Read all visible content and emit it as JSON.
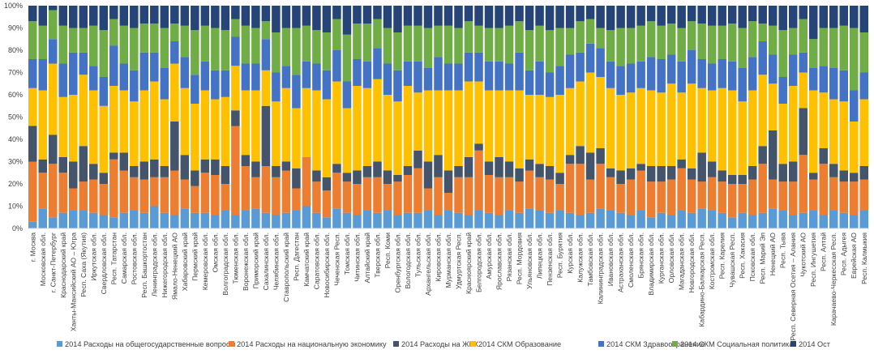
{
  "chart_data": {
    "type": "bar",
    "stacked": "percent",
    "ylim": [
      0,
      100
    ],
    "yticks": [
      "0%",
      "10%",
      "20%",
      "30%",
      "40%",
      "50%",
      "60%",
      "70%",
      "80%",
      "90%",
      "100%"
    ],
    "grid": false,
    "legend_position": "bottom",
    "categories": [
      "г. Москва",
      "Московская обл.",
      "г. Санкт-Петербург",
      "Краснодарский край",
      "Ханты-Мансийский АО – Югра",
      "Респ. Саха (Якутия)",
      "Иркутская обл.",
      "Свердловская обл.",
      "Респ. Татарстан",
      "Самарская обл.",
      "Ростовская обл.",
      "Респ. Башкортостан",
      "Ленинградская обл.",
      "Нижегородская обл.",
      "Ямало-Ненецкий АО",
      "Хабаровский край",
      "Пермский край",
      "Кемеровская обл.",
      "Омская обл.",
      "Волгоградская обл.",
      "Тюменская обл.",
      "Воронежская обл.",
      "Приморский край",
      "Сахалинская обл.",
      "Челябинская обл.",
      "Ставропольский край",
      "Респ. Дагестан",
      "Камчатский край",
      "Саратовская обл.",
      "Новосибирская обл.",
      "Чеченская Респ.",
      "Томская обл.",
      "Читинская обл.",
      "Алтайский край",
      "Тверская обл.",
      "Респ. Коми",
      "Оренбургская обл.",
      "Вологодская обл.",
      "Тульская обл.",
      "Архангельская обл.",
      "Кировская обл.",
      "Мурманская обл.",
      "Удмуртская Респ.",
      "Красноярский край",
      "Белгородская обл.",
      "Амурская обл.",
      "Ярославская обл.",
      "Рязанская обл.",
      "Респ. Мордовия",
      "Ульяновская обл.",
      "Липецкая обл.",
      "Пензенская обл.",
      "Респ. Бурятия",
      "Курская обл.",
      "Калужская обл.",
      "Тамбовская обл.",
      "Калининградская обл.",
      "Ивановская обл.",
      "Астраханская обл.",
      "Смоленская обл.",
      "Брянская обл.",
      "Владимирская обл.",
      "Курганская обл.",
      "Орловская обл.",
      "Магаданская обл.",
      "Новгородская обл.",
      "Кабардино-Балкарская Респ.",
      "Костромская обл.",
      "Респ. Карелия",
      "Чувашская Респ.",
      "Респ. Хакасия",
      "Псковская обл.",
      "Респ. Марий Эл",
      "Ненецкий АО",
      "Респ. Тыва",
      "Респ. Северная Осетия – Алания",
      "Чукотский АО",
      "Респ. Ингушетия",
      "Респ. Алтай",
      "Карачаево-Черкесская Респ.",
      "Респ. Адыгея",
      "Еврейская АО",
      "Респ. Калмыкия"
    ],
    "series": [
      {
        "name": "2014 Расходы на общегосударственные вопросы",
        "color": "#5B9BD5",
        "values": [
          3,
          9,
          5,
          7,
          8,
          8,
          7,
          6,
          5,
          7,
          8,
          7,
          10,
          7,
          6,
          9,
          7,
          7,
          6,
          8,
          6,
          8,
          9,
          7,
          6,
          7,
          8,
          10,
          7,
          5,
          9,
          7,
          6,
          8,
          7,
          8,
          6,
          7,
          7,
          8,
          6,
          8,
          7,
          6,
          8,
          7,
          6,
          8,
          7,
          9,
          8,
          7,
          8,
          7,
          6,
          7,
          9,
          8,
          7,
          6,
          8,
          5,
          7,
          6,
          8,
          7,
          9,
          8,
          7,
          5,
          7,
          6,
          7,
          9,
          8,
          6,
          7,
          8,
          6,
          8,
          7,
          6,
          8
        ]
      },
      {
        "name": "2014 Расходы на национальную экономику",
        "color": "#ED7D31",
        "values": [
          27,
          16,
          24,
          18,
          10,
          13,
          15,
          14,
          26,
          19,
          15,
          15,
          13,
          16,
          20,
          13,
          12,
          18,
          18,
          12,
          40,
          20,
          14,
          21,
          17,
          19,
          10,
          22,
          14,
          12,
          16,
          14,
          14,
          15,
          16,
          12,
          15,
          17,
          20,
          10,
          17,
          8,
          16,
          17,
          27,
          17,
          17,
          15,
          14,
          17,
          15,
          15,
          12,
          22,
          23,
          15,
          20,
          15,
          13,
          16,
          18,
          16,
          14,
          16,
          19,
          15,
          12,
          15,
          14,
          15,
          13,
          16,
          22,
          13,
          13,
          15,
          26,
          14,
          23,
          15,
          14,
          15,
          14
        ]
      },
      {
        "name": "2014 Расходы на ЖКХ",
        "color": "#44546A",
        "values": [
          16,
          6,
          13,
          7,
          12,
          16,
          7,
          5,
          3,
          8,
          5,
          8,
          8,
          5,
          22,
          11,
          7,
          6,
          7,
          8,
          7,
          5,
          7,
          27,
          5,
          4,
          9,
          0,
          5,
          6,
          4,
          4,
          6,
          5,
          7,
          6,
          3,
          4,
          8,
          12,
          10,
          10,
          5,
          9,
          3,
          6,
          9,
          7,
          6,
          5,
          6,
          6,
          5,
          4,
          8,
          12,
          7,
          4,
          6,
          5,
          3,
          7,
          7,
          6,
          4,
          5,
          13,
          7,
          5,
          4,
          4,
          6,
          8,
          22,
          8,
          9,
          21,
          3,
          7,
          6,
          5,
          4,
          6
        ]
      },
      {
        "name": "2014 СКМ Образование",
        "color": "#FFC000",
        "values": [
          17,
          31,
          32,
          27,
          30,
          32,
          33,
          30,
          30,
          28,
          29,
          32,
          35,
          30,
          26,
          30,
          30,
          31,
          27,
          31,
          20,
          29,
          32,
          16,
          29,
          33,
          27,
          31,
          36,
          35,
          37,
          29,
          38,
          35,
          37,
          34,
          33,
          36,
          26,
          32,
          29,
          36,
          34,
          34,
          28,
          32,
          30,
          32,
          35,
          29,
          31,
          31,
          35,
          30,
          29,
          36,
          32,
          36,
          34,
          34,
          34,
          34,
          33,
          37,
          30,
          38,
          29,
          32,
          37,
          38,
          33,
          34,
          32,
          21,
          27,
          34,
          16,
          37,
          25,
          29,
          31,
          23,
          30
        ]
      },
      {
        "name": "2014 СКМ Здравоохранение",
        "color": "#4472C4",
        "values": [
          13,
          14,
          11,
          15,
          19,
          10,
          11,
          13,
          18,
          12,
          14,
          17,
          13,
          14,
          10,
          14,
          13,
          13,
          13,
          12,
          13,
          12,
          12,
          14,
          13,
          10,
          15,
          12,
          12,
          13,
          14,
          12,
          12,
          12,
          14,
          14,
          14,
          11,
          14,
          10,
          15,
          12,
          12,
          13,
          13,
          13,
          13,
          12,
          17,
          11,
          15,
          11,
          13,
          15,
          13,
          13,
          13,
          12,
          13,
          13,
          12,
          15,
          15,
          13,
          14,
          15,
          13,
          12,
          13,
          13,
          15,
          15,
          15,
          13,
          12,
          14,
          9,
          10,
          12,
          14,
          14,
          14,
          12
        ]
      },
      {
        "name": "2014 СКМ Социальная политика",
        "color": "#70AD47",
        "values": [
          17,
          15,
          13,
          17,
          11,
          11,
          18,
          21,
          12,
          17,
          19,
          13,
          13,
          18,
          8,
          14,
          20,
          16,
          19,
          18,
          8,
          17,
          16,
          8,
          18,
          17,
          21,
          16,
          15,
          17,
          14,
          21,
          16,
          17,
          13,
          16,
          17,
          16,
          16,
          18,
          14,
          17,
          16,
          14,
          12,
          15,
          15,
          17,
          14,
          18,
          16,
          19,
          17,
          12,
          14,
          11,
          9,
          14,
          17,
          16,
          16,
          16,
          15,
          14,
          15,
          13,
          16,
          17,
          15,
          17,
          18,
          16,
          8,
          13,
          21,
          12,
          15,
          13,
          17,
          18,
          20,
          28,
          18
        ]
      },
      {
        "name": "2014 Ост",
        "color": "#264478",
        "values": [
          7,
          9,
          2,
          9,
          10,
          10,
          9,
          11,
          6,
          9,
          10,
          8,
          8,
          10,
          8,
          9,
          11,
          9,
          10,
          11,
          6,
          9,
          10,
          7,
          12,
          10,
          10,
          9,
          11,
          12,
          6,
          13,
          8,
          8,
          6,
          10,
          12,
          9,
          9,
          10,
          9,
          9,
          10,
          7,
          9,
          10,
          10,
          9,
          7,
          11,
          9,
          11,
          10,
          10,
          7,
          6,
          10,
          11,
          10,
          10,
          9,
          7,
          9,
          8,
          10,
          7,
          8,
          9,
          9,
          8,
          10,
          7,
          8,
          9,
          11,
          10,
          6,
          15,
          10,
          10,
          9,
          10,
          12
        ]
      }
    ]
  }
}
